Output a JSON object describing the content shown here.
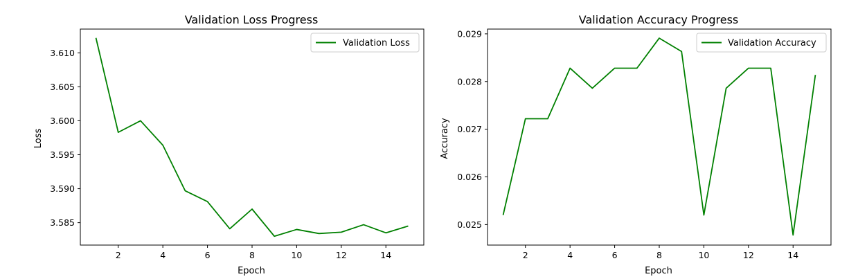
{
  "chart_data": [
    {
      "type": "line",
      "title": "Validation Loss Progress",
      "xlabel": "Epoch",
      "ylabel": "Loss",
      "x": [
        1,
        2,
        3,
        4,
        5,
        6,
        7,
        8,
        9,
        10,
        11,
        12,
        13,
        14,
        15
      ],
      "series": [
        {
          "name": "Validation Loss",
          "color": "#008000",
          "values": [
            3.6122,
            3.5983,
            3.6,
            3.5964,
            3.5897,
            3.5881,
            3.5841,
            3.587,
            3.583,
            3.584,
            3.5834,
            3.5836,
            3.5847,
            3.5835,
            3.5845
          ]
        }
      ],
      "xlim": [
        0.3,
        15.7
      ],
      "ylim": [
        3.5817,
        3.6135
      ],
      "xticks": [
        2,
        4,
        6,
        8,
        10,
        12,
        14
      ],
      "yticks": [
        3.585,
        3.59,
        3.595,
        3.6,
        3.605,
        3.61
      ],
      "ytick_labels": [
        "3.585",
        "3.590",
        "3.595",
        "3.600",
        "3.605",
        "3.610"
      ],
      "grid": false,
      "legend": "top-right"
    },
    {
      "type": "line",
      "title": "Validation Accuracy Progress",
      "xlabel": "Epoch",
      "ylabel": "Accuracy",
      "x": [
        1,
        2,
        3,
        4,
        5,
        6,
        7,
        8,
        9,
        10,
        11,
        12,
        13,
        14,
        15
      ],
      "series": [
        {
          "name": "Validation Accuracy",
          "color": "#008000",
          "values": [
            0.0252,
            0.02722,
            0.02722,
            0.02828,
            0.02786,
            0.02828,
            0.02828,
            0.02891,
            0.02863,
            0.0252,
            0.02786,
            0.02828,
            0.02828,
            0.02478,
            0.02814
          ]
        }
      ],
      "xlim": [
        0.3,
        15.7
      ],
      "ylim": [
        0.02457,
        0.0291
      ],
      "xticks": [
        2,
        4,
        6,
        8,
        10,
        12,
        14
      ],
      "yticks": [
        0.025,
        0.026,
        0.027,
        0.028,
        0.029
      ],
      "ytick_labels": [
        "0.025",
        "0.026",
        "0.027",
        "0.028",
        "0.029"
      ],
      "grid": false,
      "legend": "top-right"
    }
  ]
}
